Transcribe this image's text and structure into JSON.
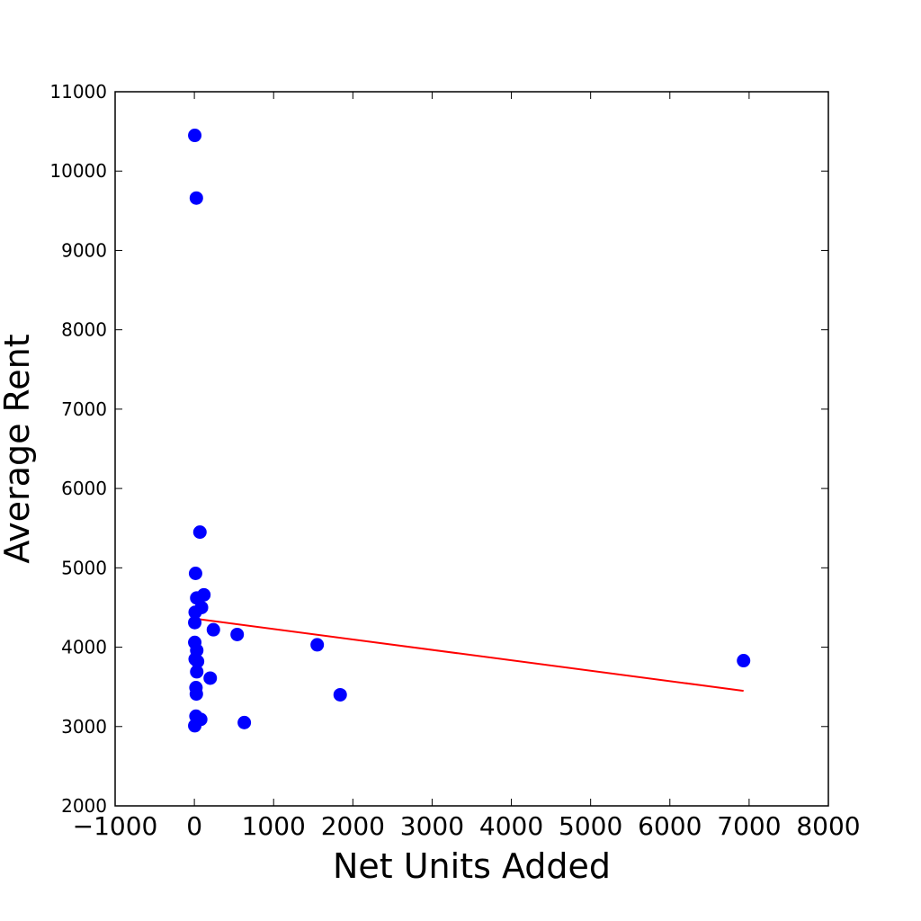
{
  "chart_data": {
    "type": "scatter",
    "title": "",
    "xlabel": "Net Units Added",
    "ylabel": "Average Rent",
    "xlim": [
      -1000,
      8000
    ],
    "ylim": [
      2000,
      11000
    ],
    "x_ticks": [
      -1000,
      0,
      1000,
      2000,
      3000,
      4000,
      5000,
      6000,
      7000,
      8000
    ],
    "x_tick_labels": [
      "−1000",
      "0",
      "1000",
      "2000",
      "3000",
      "4000",
      "5000",
      "6000",
      "7000",
      "8000"
    ],
    "y_ticks": [
      2000,
      3000,
      4000,
      5000,
      6000,
      7000,
      8000,
      9000,
      10000,
      11000
    ],
    "y_tick_labels": [
      "2000",
      "3000",
      "4000",
      "5000",
      "6000",
      "7000",
      "8000",
      "9000",
      "10000",
      "11000"
    ],
    "grid": false,
    "colors": {
      "points": "#0000ff",
      "fit_line": "#ff0000"
    },
    "series": [
      {
        "type": "scatter",
        "points": [
          {
            "x": 5,
            "y": 10450
          },
          {
            "x": 25,
            "y": 9660
          },
          {
            "x": 70,
            "y": 5450
          },
          {
            "x": 15,
            "y": 4930
          },
          {
            "x": 120,
            "y": 4660
          },
          {
            "x": 30,
            "y": 4620
          },
          {
            "x": 90,
            "y": 4500
          },
          {
            "x": 10,
            "y": 4440
          },
          {
            "x": 5,
            "y": 4310
          },
          {
            "x": 240,
            "y": 4220
          },
          {
            "x": 540,
            "y": 4160
          },
          {
            "x": 5,
            "y": 4060
          },
          {
            "x": 1550,
            "y": 4030
          },
          {
            "x": 30,
            "y": 3960
          },
          {
            "x": 10,
            "y": 3850
          },
          {
            "x": 6930,
            "y": 3830
          },
          {
            "x": 40,
            "y": 3820
          },
          {
            "x": 30,
            "y": 3690
          },
          {
            "x": 200,
            "y": 3610
          },
          {
            "x": 20,
            "y": 3490
          },
          {
            "x": 25,
            "y": 3410
          },
          {
            "x": 1840,
            "y": 3400
          },
          {
            "x": 20,
            "y": 3130
          },
          {
            "x": 80,
            "y": 3090
          },
          {
            "x": 630,
            "y": 3050
          },
          {
            "x": 5,
            "y": 3010
          }
        ]
      },
      {
        "type": "line",
        "points": [
          {
            "x": 0,
            "y": 4360
          },
          {
            "x": 6930,
            "y": 3450
          }
        ]
      }
    ]
  }
}
